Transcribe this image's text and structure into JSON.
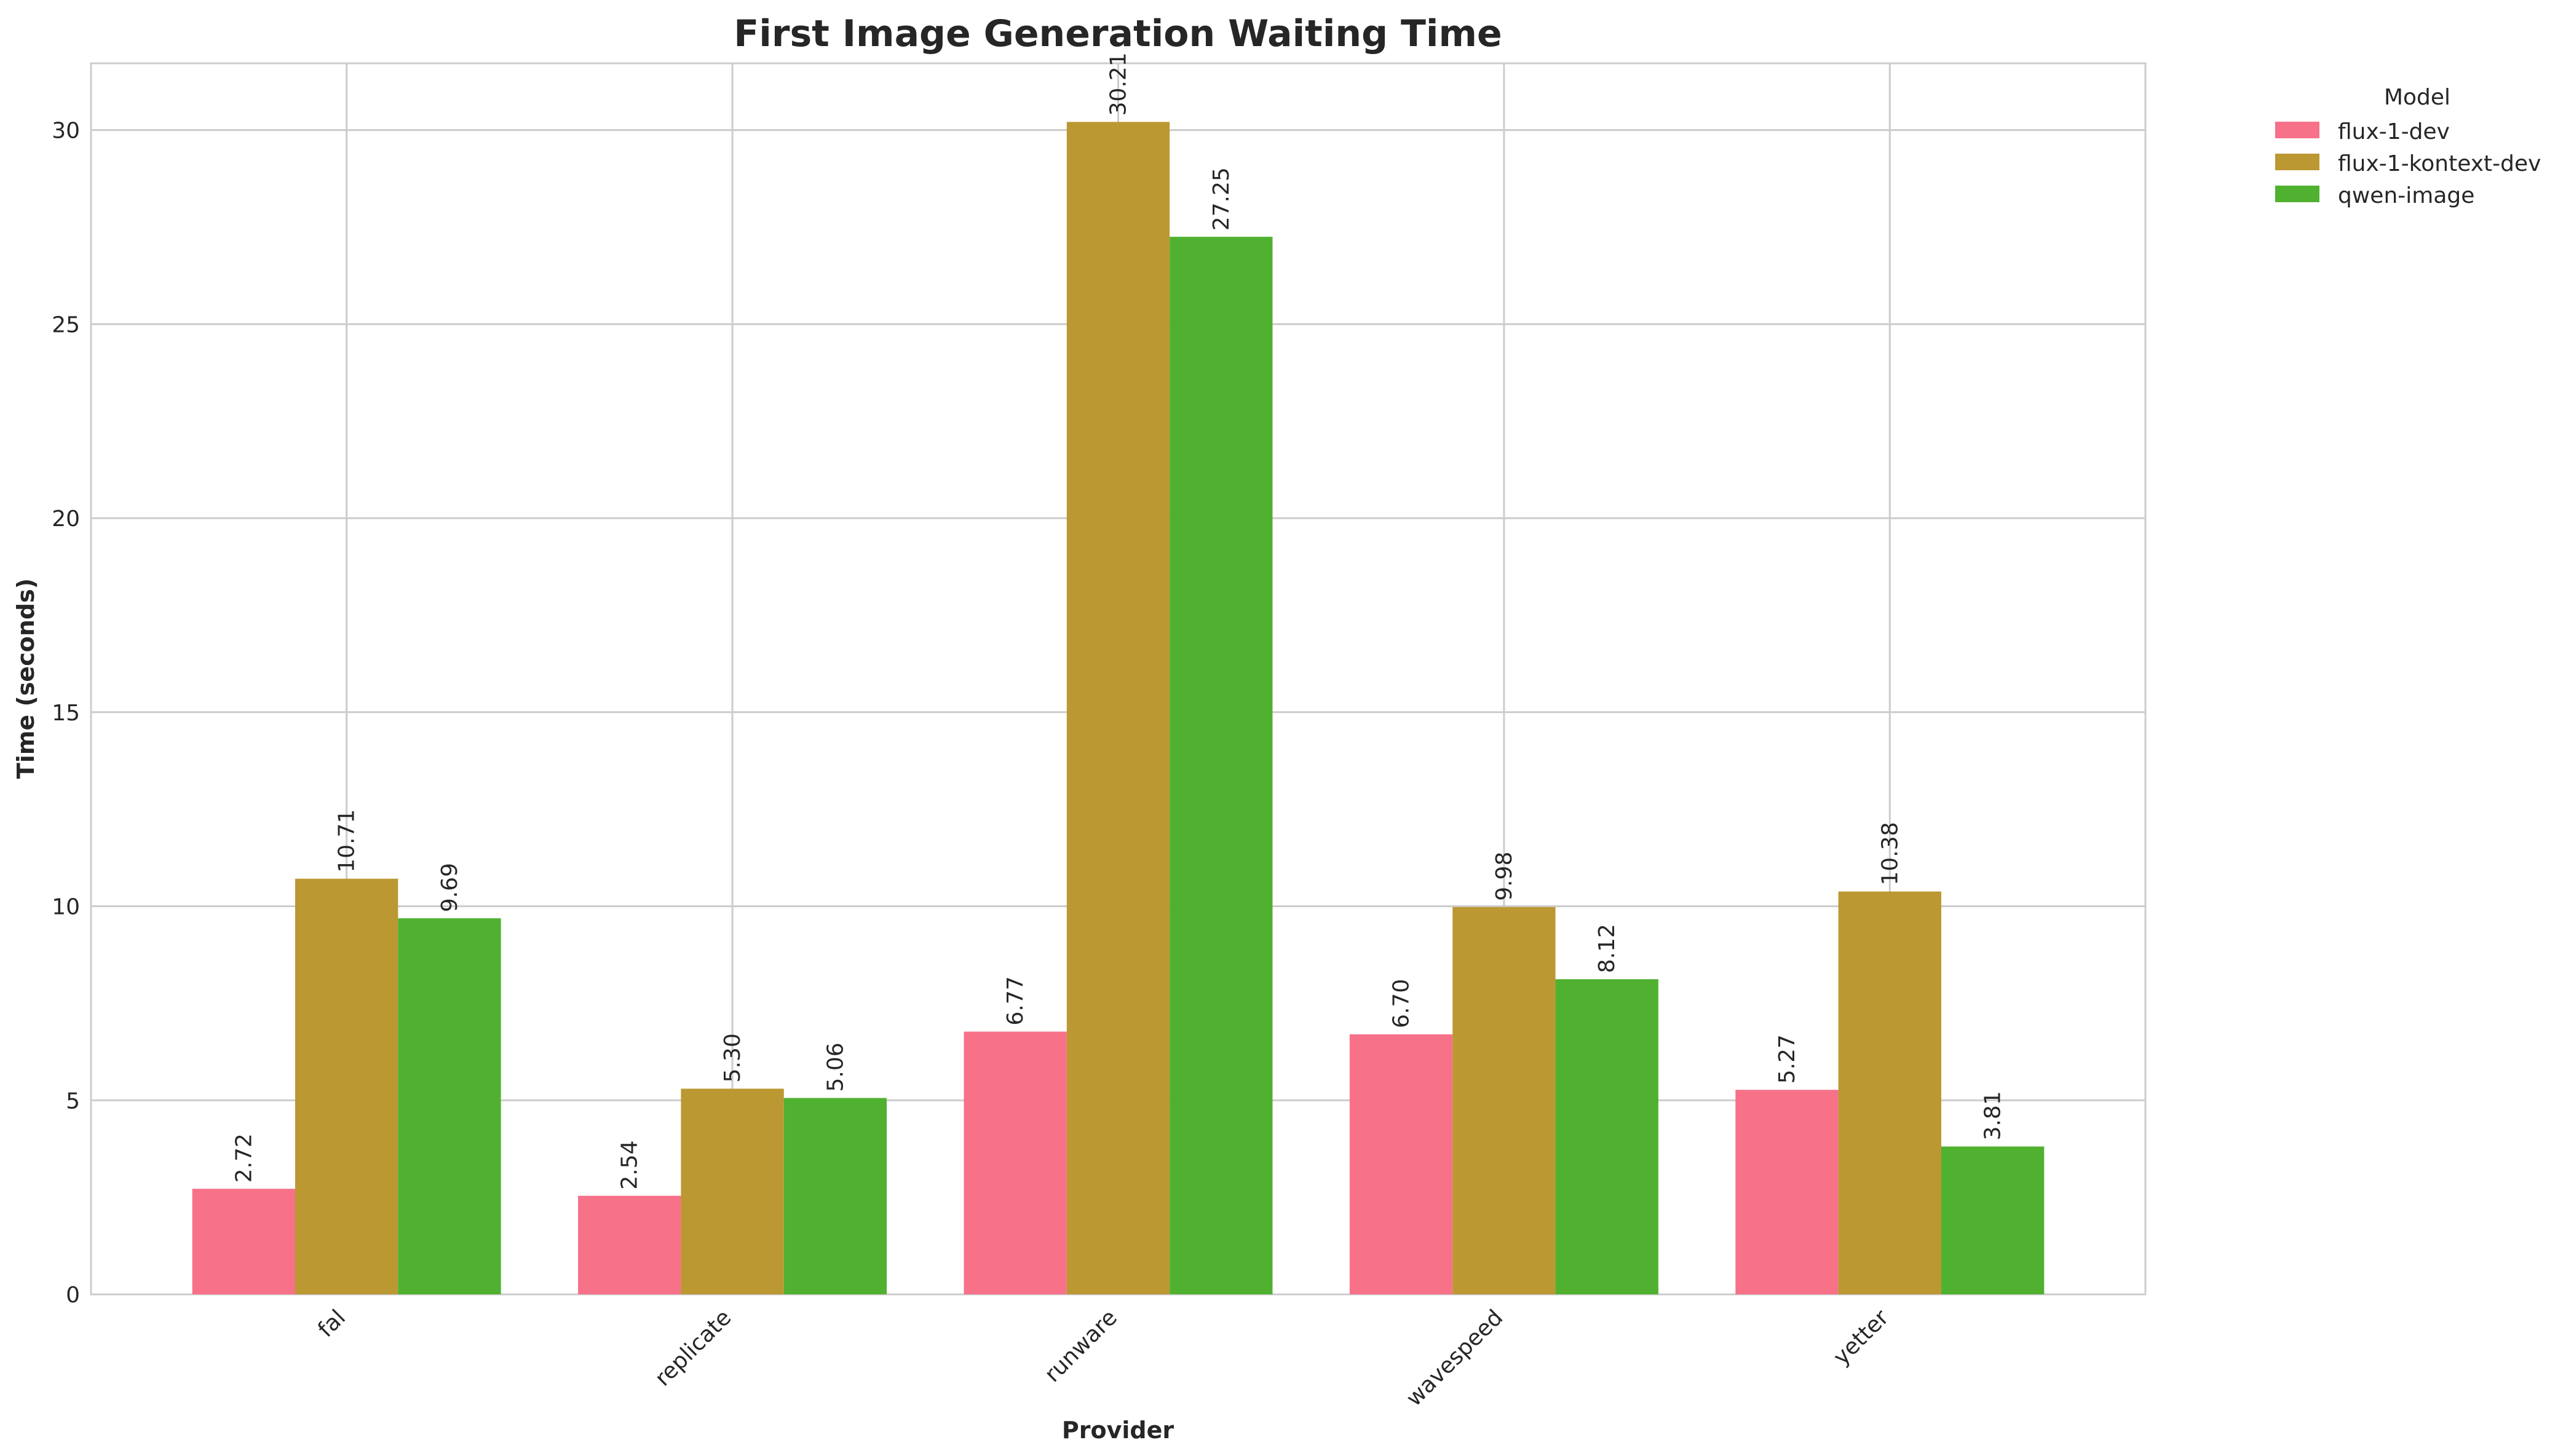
{
  "chart_data": {
    "type": "bar",
    "title": "First Image Generation Waiting Time",
    "xlabel": "Provider",
    "ylabel": "Time (seconds)",
    "categories": [
      "fal",
      "replicate",
      "runware",
      "wavespeed",
      "yetter"
    ],
    "ylim": [
      0,
      31.72
    ],
    "yticks": [
      0,
      5,
      10,
      15,
      20,
      25,
      30
    ],
    "grid": true,
    "legend": {
      "title": "Model",
      "placement": "outside-top-right"
    },
    "series": [
      {
        "name": "flux-1-dev",
        "color": "#f77189",
        "values": [
          2.72,
          2.54,
          6.77,
          6.7,
          5.27
        ],
        "labels": [
          "2.72",
          "2.54",
          "6.77",
          "6.70",
          "5.27"
        ]
      },
      {
        "name": "flux-1-kontext-dev",
        "color": "#bb9832",
        "values": [
          10.71,
          5.3,
          30.21,
          9.98,
          10.38
        ],
        "labels": [
          "10.71",
          "5.30",
          "30.21",
          "9.98",
          "10.38"
        ]
      },
      {
        "name": "qwen-image",
        "color": "#50b131",
        "values": [
          9.69,
          5.06,
          27.25,
          8.12,
          3.81
        ],
        "labels": [
          "9.69",
          "5.06",
          "27.25",
          "8.12",
          "3.81"
        ]
      }
    ]
  }
}
